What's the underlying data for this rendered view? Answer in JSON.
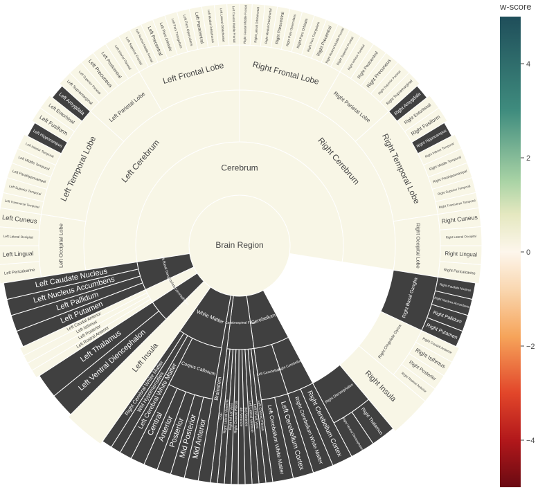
{
  "chart_data": {
    "type": "sunburst",
    "title": "",
    "colorbar": {
      "title": "w-score",
      "range": [
        -5,
        5
      ],
      "ticks": [
        4,
        2,
        0,
        -2,
        -4
      ],
      "tick_labels": [
        "4",
        "2",
        "0",
        "−2",
        "−4"
      ]
    },
    "colors": {
      "normal": "#f8f6e6",
      "abnormal": "#404040",
      "border": "#ffffff",
      "text_light": "#444444",
      "text_dark": "#ffffff"
    },
    "root": {
      "label": "Brain Region",
      "value": 0,
      "children": [
        {
          "label": "Cerebrum",
          "value": 0,
          "children": [
            {
              "label": "Left Cerebrum",
              "value": 0,
              "children": [
                {
                  "label": "Left Occipital Lobe",
                  "value": 0,
                  "children": [
                    {
                      "label": "Left Pericalcarine",
                      "value": 0
                    },
                    {
                      "label": "Left Lingual",
                      "value": 0
                    },
                    {
                      "label": "Left Lateral Occipital",
                      "value": 0
                    },
                    {
                      "label": "Left Cuneus",
                      "value": 0
                    }
                  ]
                },
                {
                  "label": "Left Temporal Lobe",
                  "value": 0,
                  "children": [
                    {
                      "label": "Left Transverse Temporal",
                      "value": 0
                    },
                    {
                      "label": "Left Superior Temporal",
                      "value": 0
                    },
                    {
                      "label": "Left Parahippocampal",
                      "value": 0
                    },
                    {
                      "label": "Left Middle Temporal",
                      "value": 0
                    },
                    {
                      "label": "Left Inferior Temporal",
                      "value": 0
                    },
                    {
                      "label": "Left Hippocampus",
                      "value": -5
                    },
                    {
                      "label": "Left Fusiform",
                      "value": 0
                    },
                    {
                      "label": "Left Entorhinal",
                      "value": 0
                    },
                    {
                      "label": "Left Amygdala",
                      "value": -5
                    }
                  ]
                },
                {
                  "label": "Left Parietal Lobe",
                  "value": 0,
                  "children": [
                    {
                      "label": "Left Supramarginal",
                      "value": 0
                    },
                    {
                      "label": "Left Superior Parietal",
                      "value": 0
                    },
                    {
                      "label": "Left Precuneus",
                      "value": 0
                    },
                    {
                      "label": "Left Postcentral",
                      "value": 0
                    },
                    {
                      "label": "Left Inferior Parietal",
                      "value": 0
                    }
                  ]
                },
                {
                  "label": "Left Frontal Lobe",
                  "value": 0,
                  "children": [
                    {
                      "label": "Left Superior Frontal",
                      "value": 0
                    },
                    {
                      "label": "Left Rostral Middle Frontal",
                      "value": 0
                    },
                    {
                      "label": "Left Precentral",
                      "value": 0
                    },
                    {
                      "label": "Left Pars Orbitalis",
                      "value": 0
                    },
                    {
                      "label": "Left Pars Triangularis",
                      "value": 0
                    },
                    {
                      "label": "Left Pars Opercularis",
                      "value": 0
                    },
                    {
                      "label": "Left Paracentral",
                      "value": 0
                    },
                    {
                      "label": "Left Medial Orbitofrontal",
                      "value": 0
                    },
                    {
                      "label": "Left Lateral Orbitofrontal",
                      "value": 0
                    },
                    {
                      "label": "Left Caudal Middle Frontal",
                      "value": 0
                    }
                  ]
                }
              ]
            },
            {
              "label": "Right Cerebrum",
              "value": 0,
              "children": [
                {
                  "label": "Right Frontal Lobe",
                  "value": 0,
                  "children": [
                    {
                      "label": "Right Caudal Middle Frontal",
                      "value": 0
                    },
                    {
                      "label": "Right Lateral Orbitofrontal",
                      "value": 0
                    },
                    {
                      "label": "Right Medial Orbitofrontal",
                      "value": 0
                    },
                    {
                      "label": "Right Paracentral",
                      "value": 0
                    },
                    {
                      "label": "Right Pars Opercularis",
                      "value": 0
                    },
                    {
                      "label": "Right Pars Orbitalis",
                      "value": 0
                    },
                    {
                      "label": "Right Pars Triangularis",
                      "value": 0
                    },
                    {
                      "label": "Right Precentral",
                      "value": 0
                    },
                    {
                      "label": "Right Rostral Middle Frontal",
                      "value": 0
                    },
                    {
                      "label": "Right Superior Frontal",
                      "value": 0
                    }
                  ]
                },
                {
                  "label": "Right Parietal Lobe",
                  "value": 0,
                  "children": [
                    {
                      "label": "Right Inferior Parietal",
                      "value": 0
                    },
                    {
                      "label": "Right Postcentral",
                      "value": 0
                    },
                    {
                      "label": "Right Precuneus",
                      "value": 0
                    },
                    {
                      "label": "Right Superior Parietal",
                      "value": 0
                    },
                    {
                      "label": "Right Supramarginal",
                      "value": 0
                    }
                  ]
                },
                {
                  "label": "Right Temporal Lobe",
                  "value": 0,
                  "children": [
                    {
                      "label": "Right Amygdala",
                      "value": -5
                    },
                    {
                      "label": "Right Entorhinal",
                      "value": 0
                    },
                    {
                      "label": "Right Fusiform",
                      "value": 0
                    },
                    {
                      "label": "Right Hippocampus",
                      "value": -5
                    },
                    {
                      "label": "Right Inferior Temporal",
                      "value": 0
                    },
                    {
                      "label": "Right Middle Temporal",
                      "value": 0
                    },
                    {
                      "label": "Right Parahippocampal",
                      "value": 0
                    },
                    {
                      "label": "Right Superior Temporal",
                      "value": 0
                    },
                    {
                      "label": "Right Transverse Temporal",
                      "value": 0
                    }
                  ]
                },
                {
                  "label": "Right Occipital Lobe",
                  "value": 0,
                  "children": [
                    {
                      "label": "Right Cuneus",
                      "value": 0
                    },
                    {
                      "label": "Right Lateral Occipital",
                      "value": 0
                    },
                    {
                      "label": "Right Lingual",
                      "value": 0
                    },
                    {
                      "label": "Right Pericalcarine",
                      "value": 0
                    }
                  ]
                },
                {
                  "label": "Right Basal Ganglia",
                  "value": -5,
                  "children": [
                    {
                      "label": "Right Caudate Nucleus",
                      "value": -5
                    },
                    {
                      "label": "Right Nucleus Accumbens",
                      "value": -5
                    },
                    {
                      "label": "Right Pallidum",
                      "value": -5
                    },
                    {
                      "label": "Right Putamen",
                      "value": -5
                    }
                  ]
                },
                {
                  "label": "Right Cingulate Gyrus",
                  "value": 0,
                  "children": [
                    {
                      "label": "Right Caudal Anterior",
                      "value": 0
                    },
                    {
                      "label": "Right Isthmus",
                      "value": 0
                    },
                    {
                      "label": "Right Posterior",
                      "value": 0
                    },
                    {
                      "label": "Right Rostral Anterior",
                      "value": 0
                    }
                  ]
                },
                {
                  "label": "Right Insula",
                  "value": 0
                },
                {
                  "label": "Right Diencephalon",
                  "value": -5,
                  "children": [
                    {
                      "label": "Right Thalamus",
                      "value": -5
                    },
                    {
                      "label": "Right Ventral Diencephalon",
                      "value": -5
                    }
                  ]
                }
              ]
            }
          ]
        },
        {
          "label": "Cerebellum",
          "value": -5,
          "children": [
            {
              "label": "Right Cerebellum",
              "value": -5,
              "children": [
                {
                  "label": "Right Cerebellum Cortex",
                  "value": -5
                },
                {
                  "label": "Right Cerebellum White Matter",
                  "value": -5
                }
              ]
            },
            {
              "label": "Left Cerebellum",
              "value": -5,
              "children": [
                {
                  "label": "Left Cerebellum Cortex",
                  "value": -5
                },
                {
                  "label": "Left Cerebellum White Matter",
                  "value": -5
                }
              ]
            }
          ]
        },
        {
          "label": "Cerebrospinal Fluid",
          "value": -5,
          "children": [
            {
              "label": "Left Choroid Plexus",
              "value": -5
            },
            {
              "label": "Left Inf Lat Vent",
              "value": -5
            },
            {
              "label": "Left Lateral Ventricle",
              "value": -5
            },
            {
              "label": "3rd Ventricle",
              "value": -5
            },
            {
              "label": "4th Ventricle",
              "value": -5
            },
            {
              "label": "Right Choroid Plexus",
              "value": -5
            },
            {
              "label": "Right Inf Lat Vent",
              "value": -5
            },
            {
              "label": "Right Lateral Ventricle",
              "value": -5
            },
            {
              "label": "CSF",
              "value": -5
            }
          ]
        },
        {
          "label": "Brainstem",
          "value": -5
        },
        {
          "label": "White Matter",
          "value": -5,
          "children": [
            {
              "label": "Corpus Callosum",
              "value": -5,
              "children": [
                {
                  "label": "Mid Anterior",
                  "value": -5
                },
                {
                  "label": "Mid Posterior",
                  "value": -5
                },
                {
                  "label": "Posterior",
                  "value": -5
                },
                {
                  "label": "Anterior",
                  "value": -5
                },
                {
                  "label": "Central",
                  "value": -5
                }
              ]
            },
            {
              "label": "Left Cerebral White Matter",
              "value": -5
            },
            {
              "label": "WM Hypointensities",
              "value": -5
            },
            {
              "label": "Right Cerebral White Matter",
              "value": -5
            }
          ]
        },
        {
          "label": "Left Insula",
          "value": 0
        },
        {
          "label": "Left Diencephalon",
          "value": -5,
          "children": [
            {
              "label": "Left Ventral Diencephalon",
              "value": -5
            },
            {
              "label": "Left Thalamus",
              "value": -5
            }
          ]
        },
        {
          "label": "Left Cingulate Gyrus",
          "value": 0,
          "children": [
            {
              "label": "Left Rostral Anterior",
              "value": 0
            },
            {
              "label": "Left Posterior",
              "value": 0
            },
            {
              "label": "Left Isthmus",
              "value": 0
            },
            {
              "label": "Left Caudal Anterior",
              "value": 0
            }
          ]
        },
        {
          "label": "Left Basal Ganglia",
          "value": -5,
          "children": [
            {
              "label": "Left Putamen",
              "value": -5
            },
            {
              "label": "Left Pallidum",
              "value": -5
            },
            {
              "label": "Left Nucleus Accumbens",
              "value": -5
            },
            {
              "label": "Left Caudate Nucleus",
              "value": -5
            }
          ]
        }
      ]
    }
  }
}
